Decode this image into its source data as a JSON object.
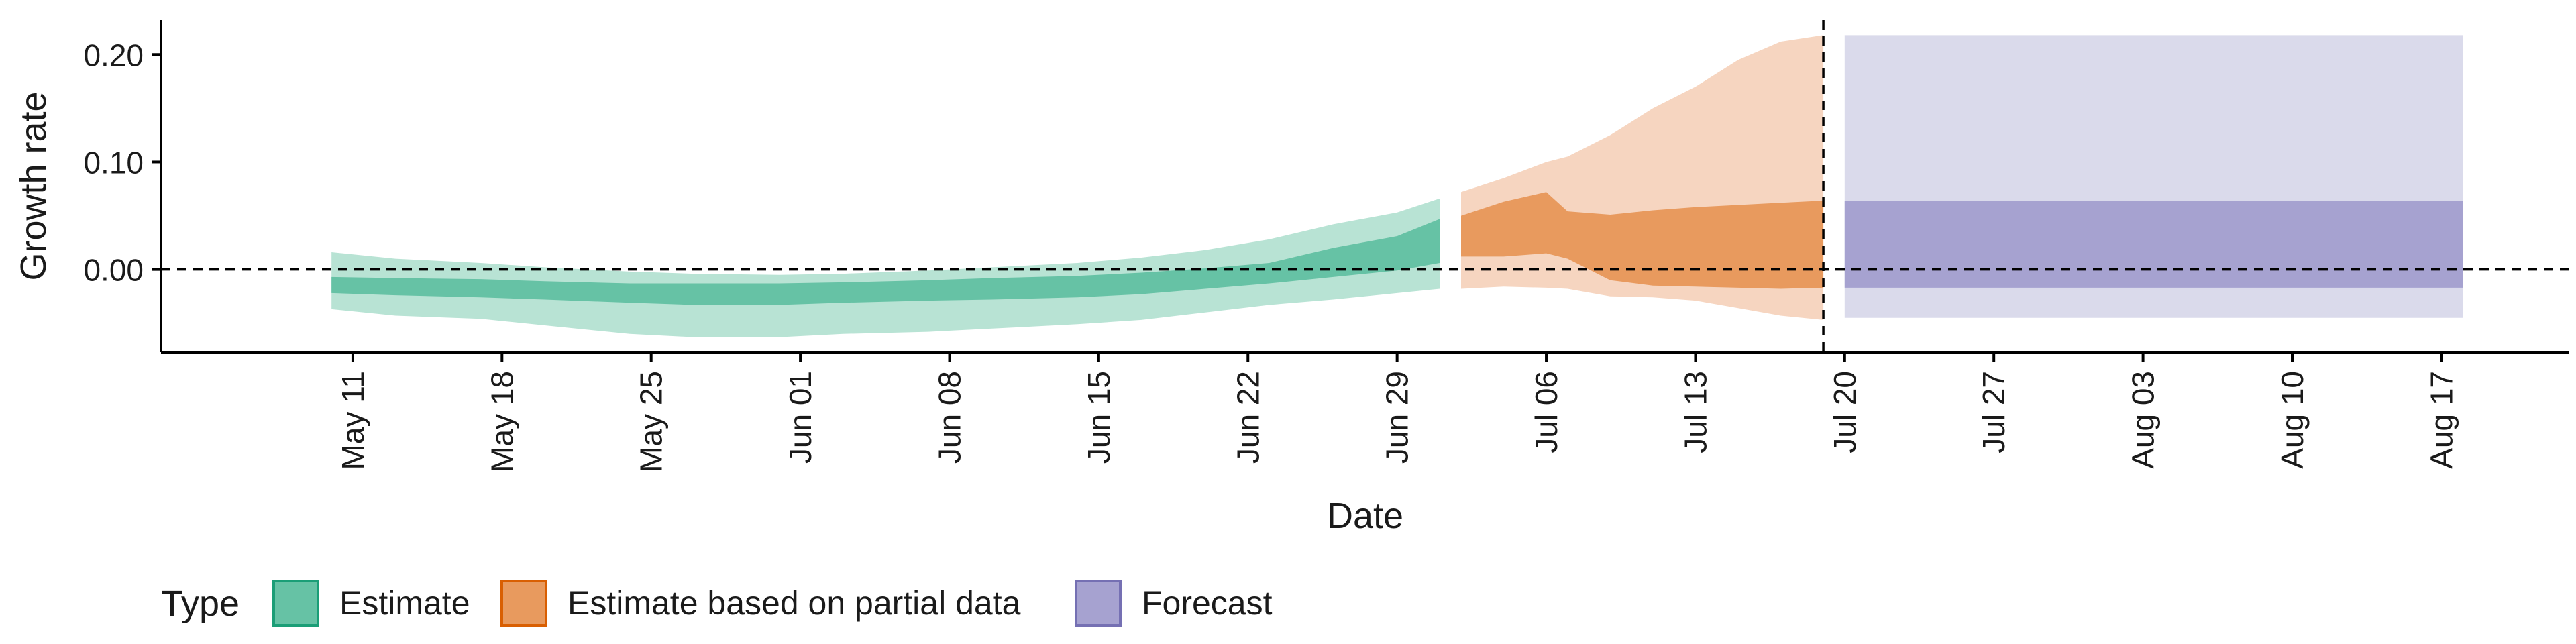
{
  "chart_data": {
    "type": "area",
    "xlabel": "Date",
    "ylabel": "Growth rate",
    "ylim": [
      -0.077,
      0.232
    ],
    "xlim": [
      "2020-05-02",
      "2020-08-23"
    ],
    "grid": false,
    "y_ticks": [
      {
        "value": 0.0,
        "label": "0.00"
      },
      {
        "value": 0.1,
        "label": "0.10"
      },
      {
        "value": 0.2,
        "label": "0.20"
      }
    ],
    "x_ticks": [
      {
        "date": "2020-05-11",
        "label": "May 11"
      },
      {
        "date": "2020-05-18",
        "label": "May 18"
      },
      {
        "date": "2020-05-25",
        "label": "May 25"
      },
      {
        "date": "2020-06-01",
        "label": "Jun 01"
      },
      {
        "date": "2020-06-08",
        "label": "Jun 08"
      },
      {
        "date": "2020-06-15",
        "label": "Jun 15"
      },
      {
        "date": "2020-06-22",
        "label": "Jun 22"
      },
      {
        "date": "2020-06-29",
        "label": "Jun 29"
      },
      {
        "date": "2020-07-06",
        "label": "Jul 06"
      },
      {
        "date": "2020-07-13",
        "label": "Jul 13"
      },
      {
        "date": "2020-07-20",
        "label": "Jul 20"
      },
      {
        "date": "2020-07-27",
        "label": "Jul 27"
      },
      {
        "date": "2020-08-03",
        "label": "Aug 03"
      },
      {
        "date": "2020-08-10",
        "label": "Aug 10"
      },
      {
        "date": "2020-08-17",
        "label": "Aug 17"
      }
    ],
    "reference_lines": {
      "horizontal_y": 0.0,
      "vertical_date": "2020-07-19"
    },
    "legend": {
      "title": "Type",
      "position": "bottom-left",
      "items": [
        {
          "label": "Estimate",
          "series": "estimate"
        },
        {
          "label": "Estimate based on partial data",
          "series": "partial"
        },
        {
          "label": "Forecast",
          "series": "forecast"
        }
      ]
    },
    "series": [
      {
        "name": "Estimate",
        "key": "estimate",
        "color_inner": "#66c2a5",
        "color_outer": "#b8e3d4",
        "border": "#1b9e77",
        "points": [
          {
            "date": "2020-05-10",
            "lo90": -0.037,
            "lo50": -0.022,
            "hi50": -0.007,
            "hi90": 0.016
          },
          {
            "date": "2020-05-13",
            "lo90": -0.043,
            "lo50": -0.024,
            "hi50": -0.008,
            "hi90": 0.01
          },
          {
            "date": "2020-05-17",
            "lo90": -0.046,
            "lo50": -0.026,
            "hi50": -0.009,
            "hi90": 0.006
          },
          {
            "date": "2020-05-20",
            "lo90": -0.052,
            "lo50": -0.028,
            "hi50": -0.011,
            "hi90": 0.002
          },
          {
            "date": "2020-05-24",
            "lo90": -0.06,
            "lo50": -0.031,
            "hi50": -0.013,
            "hi90": -0.002
          },
          {
            "date": "2020-05-27",
            "lo90": -0.063,
            "lo50": -0.033,
            "hi50": -0.013,
            "hi90": -0.004
          },
          {
            "date": "2020-05-31",
            "lo90": -0.063,
            "lo50": -0.033,
            "hi50": -0.013,
            "hi90": -0.005
          },
          {
            "date": "2020-06-03",
            "lo90": -0.06,
            "lo50": -0.031,
            "hi50": -0.012,
            "hi90": -0.004
          },
          {
            "date": "2020-06-07",
            "lo90": -0.058,
            "lo50": -0.029,
            "hi50": -0.01,
            "hi90": -0.001
          },
          {
            "date": "2020-06-10",
            "lo90": -0.055,
            "lo50": -0.028,
            "hi50": -0.008,
            "hi90": 0.002
          },
          {
            "date": "2020-06-14",
            "lo90": -0.051,
            "lo50": -0.026,
            "hi50": -0.006,
            "hi90": 0.006
          },
          {
            "date": "2020-06-17",
            "lo90": -0.047,
            "lo50": -0.023,
            "hi50": -0.003,
            "hi90": 0.011
          },
          {
            "date": "2020-06-20",
            "lo90": -0.04,
            "lo50": -0.018,
            "hi50": 0.001,
            "hi90": 0.018
          },
          {
            "date": "2020-06-23",
            "lo90": -0.033,
            "lo50": -0.013,
            "hi50": 0.006,
            "hi90": 0.028
          },
          {
            "date": "2020-06-26",
            "lo90": -0.028,
            "lo50": -0.007,
            "hi50": 0.02,
            "hi90": 0.042
          },
          {
            "date": "2020-06-29",
            "lo90": -0.022,
            "lo50": -0.001,
            "hi50": 0.031,
            "hi90": 0.053
          },
          {
            "date": "2020-07-01",
            "lo90": -0.018,
            "lo50": 0.006,
            "hi50": 0.047,
            "hi90": 0.066
          }
        ]
      },
      {
        "name": "Estimate based on partial data",
        "key": "partial",
        "color_inner": "#e89a5e",
        "color_outer": "#f6d5c0",
        "border": "#d95f02",
        "points": [
          {
            "date": "2020-07-02",
            "lo90": -0.018,
            "lo50": 0.012,
            "hi50": 0.05,
            "hi90": 0.072
          },
          {
            "date": "2020-07-04",
            "lo90": -0.016,
            "lo50": 0.012,
            "hi50": 0.063,
            "hi90": 0.085
          },
          {
            "date": "2020-07-06",
            "lo90": -0.017,
            "lo50": 0.015,
            "hi50": 0.072,
            "hi90": 0.1
          },
          {
            "date": "2020-07-07",
            "lo90": -0.018,
            "lo50": 0.01,
            "hi50": 0.054,
            "hi90": 0.105
          },
          {
            "date": "2020-07-09",
            "lo90": -0.025,
            "lo50": -0.01,
            "hi50": 0.051,
            "hi90": 0.125
          },
          {
            "date": "2020-07-11",
            "lo90": -0.026,
            "lo50": -0.015,
            "hi50": 0.055,
            "hi90": 0.15
          },
          {
            "date": "2020-07-13",
            "lo90": -0.029,
            "lo50": -0.016,
            "hi50": 0.058,
            "hi90": 0.17
          },
          {
            "date": "2020-07-15",
            "lo90": -0.036,
            "lo50": -0.017,
            "hi50": 0.06,
            "hi90": 0.195
          },
          {
            "date": "2020-07-17",
            "lo90": -0.043,
            "lo50": -0.018,
            "hi50": 0.062,
            "hi90": 0.212
          },
          {
            "date": "2020-07-19",
            "lo90": -0.047,
            "lo50": -0.017,
            "hi50": 0.064,
            "hi90": 0.218
          }
        ]
      },
      {
        "name": "Forecast",
        "key": "forecast",
        "color_inner": "#a6a2d0",
        "color_outer": "#dadaeb",
        "border": "#7570b3",
        "points": [
          {
            "date": "2020-07-20",
            "lo90": -0.045,
            "lo50": -0.017,
            "hi50": 0.064,
            "hi90": 0.218
          },
          {
            "date": "2020-08-18",
            "lo90": -0.045,
            "lo50": -0.017,
            "hi50": 0.064,
            "hi90": 0.218
          }
        ]
      }
    ]
  }
}
